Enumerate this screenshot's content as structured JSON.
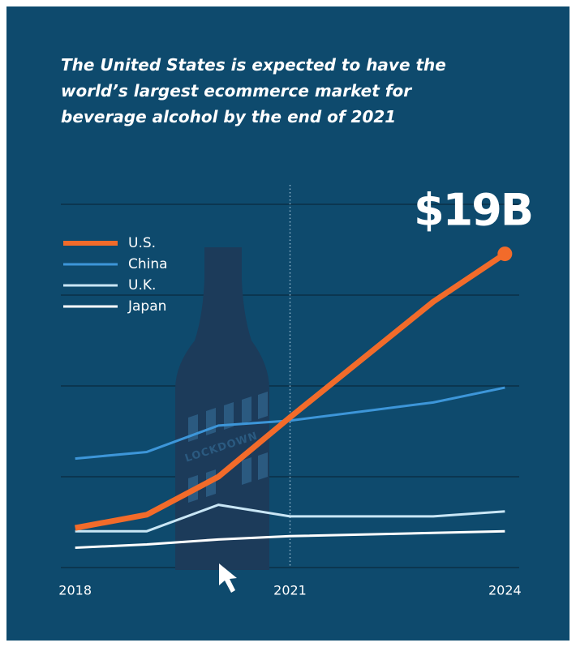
{
  "chart_data": {
    "type": "line",
    "title": "The United States is expected to have the world’s largest ecommerce market for beverage alcohol by the end of 2021",
    "x": [
      2018,
      2019,
      2020,
      2021,
      2023,
      2024
    ],
    "series": [
      {
        "name": "U.S.",
        "color": "#f26b2a",
        "line_width": 7,
        "values": [
          2.4,
          3.2,
          5.5,
          9.1,
          16.1,
          19
        ]
      },
      {
        "name": "China",
        "color": "#3d96d9",
        "line_width": 3,
        "values": [
          6.6,
          7.0,
          8.6,
          8.9,
          10.0,
          10.9
        ]
      },
      {
        "name": "U.K.",
        "color": "#c9e6f5",
        "line_width": 3,
        "values": [
          2.2,
          2.2,
          3.8,
          3.1,
          3.1,
          3.4
        ]
      },
      {
        "name": "Japan",
        "color": "#ffffff",
        "line_width": 3,
        "values": [
          1.2,
          1.4,
          1.7,
          1.9,
          2.1,
          2.2
        ]
      }
    ],
    "xlim": [
      2017.8,
      2024.2
    ],
    "xticks": [
      2018,
      2021,
      2024
    ],
    "ylim": [
      0,
      22
    ],
    "yticks": [
      0,
      5.5,
      11,
      16.5,
      22
    ],
    "show_ytick_labels": false,
    "grid": true,
    "vline": 2021,
    "end_label": "$19B",
    "bottle_label": "LOCKDOWN",
    "legend": "upper left"
  }
}
